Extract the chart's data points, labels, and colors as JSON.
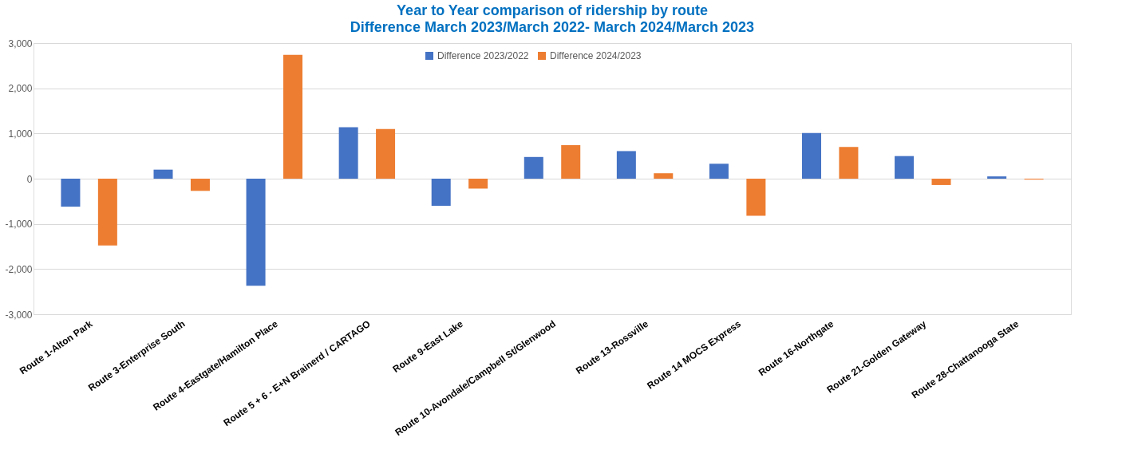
{
  "chart_data": {
    "type": "bar",
    "title": "Year to Year comparison of ridership by route",
    "subtitle": "Difference March 2023/March 2022- March 2024/March 2023",
    "categories": [
      "Route 1-Alton Park",
      "Route 3-Enterprise South",
      "Route 4-Eastgate/Hamilton Place",
      "Route 5 + 6 - E+N Brainerd / CARTAGO",
      "Route 9-East Lake",
      "Route 10-Avondale/Campbell St/Glenwood",
      "Route 13-Rossville",
      "Route 14 MOCS Express",
      "Route 16-Northgate",
      "Route 21-Golden Gateway",
      "Route 28-Chattanooga State"
    ],
    "series": [
      {
        "name": "Difference 2023/2022",
        "color": "#4472c4",
        "values": [
          -620,
          200,
          -2370,
          1140,
          -600,
          480,
          610,
          330,
          1010,
          500,
          50
        ]
      },
      {
        "name": "Difference 2024/2023",
        "color": "#ed7d31",
        "values": [
          -1480,
          -270,
          2740,
          1100,
          -220,
          740,
          120,
          -820,
          700,
          -140,
          -20
        ]
      }
    ],
    "ylim": [
      -3000,
      3000
    ],
    "yticks": [
      {
        "value": -3000,
        "label": "-3,000"
      },
      {
        "value": -2000,
        "label": "-2,000"
      },
      {
        "value": -1000,
        "label": "-1,000"
      },
      0,
      {
        "value": 1000,
        "label": "1,000"
      },
      {
        "value": 2000,
        "label": "2,000"
      },
      {
        "value": 3000,
        "label": "3,000"
      }
    ],
    "grid": "y",
    "legend": "top"
  }
}
